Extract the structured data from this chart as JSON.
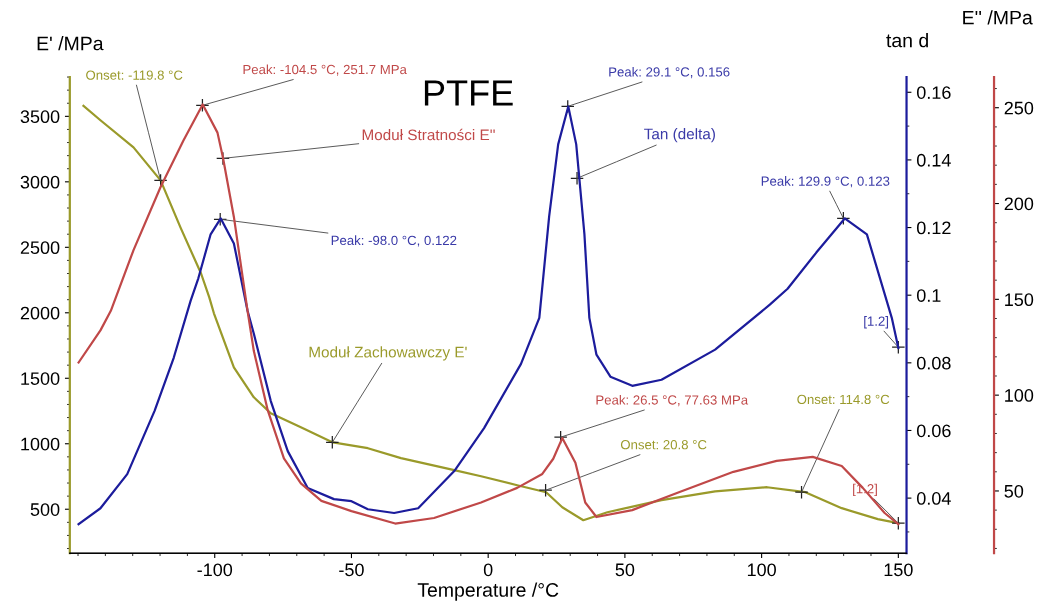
{
  "chart_data": {
    "type": "line",
    "title": "PTFE",
    "xlabel": "Temperature /°C",
    "ylabel": "E' /MPa",
    "y2label": "tan d",
    "y3label": "E'' /MPa",
    "xlim": [
      -153,
      153
    ],
    "xticks": [
      -100,
      -50,
      0,
      50,
      100,
      150
    ],
    "ylim": [
      164,
      3800
    ],
    "yticks": [
      500,
      1000,
      1500,
      2000,
      2500,
      3000,
      3500
    ],
    "y2lim": [
      0.0237,
      0.1645
    ],
    "y2ticks": [
      0.04,
      0.06,
      0.08,
      0.1,
      0.12,
      0.14,
      0.16
    ],
    "y3lim": [
      17.5,
      266
    ],
    "y3ticks": [
      50,
      100,
      150,
      200,
      250
    ],
    "grid": false,
    "marker": "none",
    "line_style": "solid",
    "series": [
      {
        "color": "#9a9a2a",
        "axis": "y",
        "x": [
          -148,
          -141.8,
          -129.7,
          -119.8,
          -112.5,
          -105,
          -102,
          -100.3,
          -93,
          -85.7,
          -79.5,
          -68.5,
          -56.8,
          -44,
          -31.9,
          -12.4,
          -2.6,
          10.6,
          21.2,
          27.1,
          34.8,
          43.6,
          63.4,
          83,
          102,
          116,
          129.3,
          142.5,
          150
        ],
        "values": [
          3580,
          3470,
          3263,
          3011,
          2650,
          2300,
          2118,
          1996,
          1584,
          1355,
          1233,
          1126,
          1010,
          966,
          890,
          798,
          752,
          683,
          630,
          515,
          416,
          477,
          569,
          637,
          668,
          630,
          508,
          424,
          393
        ]
      },
      {
        "color": "#1c1c9c",
        "axis": "y2",
        "x": [
          -149.8,
          -141.8,
          -132,
          -122,
          -115,
          -108.8,
          -106,
          -101.5,
          -97.8,
          -93,
          -88,
          -85.7,
          -79.5,
          -73.3,
          -66,
          -56.4,
          -50,
          -44,
          -34.4,
          -25.6,
          -12.4,
          -1.5,
          12,
          18.7,
          22.3,
          25.6,
          29.3,
          32.2,
          35.2,
          37,
          39.6,
          44.7,
          52.7,
          63.4,
          83,
          103,
          109.5,
          120,
          130.4,
          138.5,
          147.6,
          150
        ],
        "values": [
          0.0323,
          0.037,
          0.0471,
          0.0658,
          0.0815,
          0.0984,
          0.105,
          0.118,
          0.1227,
          0.1153,
          0.0954,
          0.0886,
          0.0687,
          0.0539,
          0.043,
          0.0397,
          0.0391,
          0.0367,
          0.0356,
          0.037,
          0.048,
          0.0607,
          0.0797,
          0.0933,
          0.1233,
          0.1446,
          0.1558,
          0.1446,
          0.118,
          0.0933,
          0.0824,
          0.0759,
          0.0732,
          0.075,
          0.0839,
          0.0972,
          0.1019,
          0.1126,
          0.1227,
          0.118,
          0.0933,
          0.0844
        ]
      },
      {
        "color": "#c04848",
        "axis": "y3",
        "x": [
          -149.8,
          -141.8,
          -138,
          -129.7,
          -119.8,
          -111.4,
          -104.4,
          -99,
          -97,
          -93,
          -88,
          -85.7,
          -80.6,
          -74.7,
          -68.5,
          -61,
          -50,
          -34,
          -19.8,
          -2.6,
          10.6,
          19.8,
          23.8,
          27.1,
          31.9,
          35.5,
          39.6,
          52.7,
          70,
          89.7,
          105.5,
          118.7,
          129.3,
          137,
          145,
          150
        ],
        "values": [
          117,
          133.8,
          144,
          175.7,
          208.6,
          233,
          251.7,
          237,
          224,
          193,
          144,
          123,
          92,
          67,
          54,
          44.8,
          39.5,
          33,
          35.9,
          44,
          51.6,
          58.9,
          66.8,
          77.6,
          64.7,
          44,
          36.4,
          40,
          49.5,
          60,
          65.7,
          67.8,
          63,
          51.6,
          38.5,
          32.7
        ]
      }
    ],
    "annotations": [
      {
        "text": "Onset: -119.8 °C",
        "x": -119.8,
        "y": 3011
      },
      {
        "text": "Peak: -104.5 °C, 251.7 MPa",
        "x": -104.5,
        "y": 3584
      },
      {
        "text": "Moduł Stratności E''",
        "x": -97,
        "y": 3179
      },
      {
        "text": "Peak: -98.0 °C, 0.122",
        "x": -98,
        "y": 2714
      },
      {
        "text": "Peak: 29.1 °C, 0.156",
        "x": 29.1,
        "y": 3576
      },
      {
        "text": "Tan (delta)",
        "x": 32.5,
        "y": 3027
      },
      {
        "text": "Peak: 129.9 °C, 0.123",
        "x": 129.9,
        "y": 2721
      },
      {
        "text": "[1.2]",
        "x": 150,
        "y": 1737
      },
      {
        "text": "Moduł Zachowawczy E'",
        "x": -57,
        "y": 1011
      },
      {
        "text": "Peak: 26.5 °C, 77.63 MPa",
        "x": 26.5,
        "y": 1050
      },
      {
        "text": "Onset: 20.8 °C",
        "x": 21,
        "y": 645
      },
      {
        "text": "Onset: 114.8 °C",
        "x": 114.6,
        "y": 630
      },
      {
        "text": "[1.2]",
        "x": 150,
        "y": 393
      }
    ]
  }
}
